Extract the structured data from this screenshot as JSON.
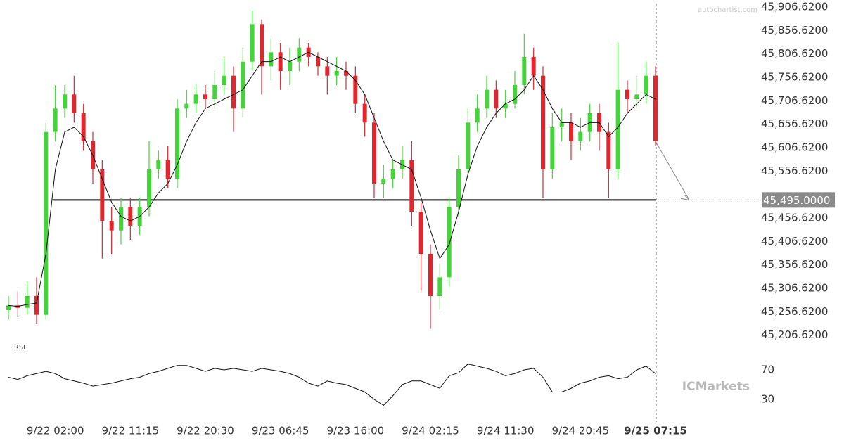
{
  "watermarks": {
    "source": "autochartist.com",
    "logo": "ICMarkets"
  },
  "chart_data": [
    {
      "type": "candlestick",
      "categories": [
        null,
        null,
        null,
        null,
        null,
        "9/22 02:00",
        null,
        null,
        null,
        null,
        null,
        null,
        null,
        "9/22 11:15",
        null,
        null,
        null,
        null,
        null,
        null,
        null,
        "9/22 20:30",
        null,
        null,
        null,
        null,
        null,
        null,
        null,
        "9/23 06:45",
        null,
        null,
        null,
        null,
        null,
        null,
        null,
        "9/23 16:00",
        null,
        null,
        null,
        null,
        null,
        null,
        null,
        "9/24 02:15",
        null,
        null,
        null,
        null,
        null,
        null,
        null,
        "9/24 11:30",
        null,
        null,
        null,
        null,
        null,
        null,
        null,
        "9/24 20:45",
        null,
        null,
        null,
        null,
        null,
        null,
        null,
        "9/25 07:15"
      ],
      "open": [
        45260,
        45270,
        45265,
        45290,
        45250,
        45640,
        45690,
        45720,
        45680,
        45620,
        45560,
        45450,
        45430,
        45480,
        45440,
        45480,
        45560,
        45580,
        45540,
        45690,
        45700,
        45720,
        45710,
        45740,
        45760,
        45690,
        45790,
        45870,
        45780,
        45810,
        45770,
        45790,
        45820,
        45800,
        45780,
        45760,
        45770,
        45760,
        45700,
        45660,
        45530,
        45540,
        45560,
        45580,
        45470,
        45380,
        45290,
        45330,
        45480,
        45560,
        45660,
        45690,
        45730,
        45690,
        45700,
        45740,
        45800,
        45760,
        45560,
        45650,
        45660,
        45620,
        45640,
        45680,
        45640,
        45560,
        45730,
        45710,
        45720,
        45760
      ],
      "high": [
        45290,
        45300,
        45320,
        45330,
        45660,
        45740,
        45740,
        45760,
        45700,
        45640,
        45580,
        45480,
        45500,
        45500,
        45500,
        45620,
        45600,
        45610,
        45710,
        45730,
        45740,
        45740,
        45770,
        45800,
        45780,
        45820,
        45900,
        45880,
        45840,
        45830,
        45820,
        45840,
        45830,
        45810,
        45800,
        45800,
        45790,
        45780,
        45720,
        45680,
        45570,
        45580,
        45610,
        45620,
        45490,
        45400,
        45360,
        45500,
        45590,
        45690,
        45720,
        45760,
        45750,
        45730,
        45770,
        45850,
        45820,
        45780,
        45680,
        45690,
        45680,
        45670,
        45700,
        45700,
        45660,
        45830,
        45750,
        45760,
        45790,
        45780
      ],
      "low": [
        45240,
        45245,
        45250,
        45230,
        45240,
        45620,
        45670,
        45660,
        45600,
        45530,
        45370,
        45380,
        45400,
        45410,
        45420,
        45460,
        45540,
        45520,
        45520,
        45670,
        45680,
        45690,
        45690,
        45720,
        45640,
        45670,
        45770,
        45720,
        45750,
        45730,
        45740,
        45770,
        45780,
        45760,
        45720,
        45740,
        45730,
        45680,
        45630,
        45500,
        45500,
        45520,
        45540,
        45440,
        45300,
        45220,
        45260,
        45310,
        45460,
        45540,
        45640,
        45670,
        45670,
        45670,
        45690,
        45720,
        45730,
        45500,
        45540,
        45620,
        45580,
        45600,
        45620,
        45600,
        45500,
        45540,
        45680,
        45690,
        45700,
        45610
      ],
      "close": [
        45270,
        45265,
        45290,
        45250,
        45640,
        45690,
        45720,
        45680,
        45620,
        45560,
        45450,
        45430,
        45480,
        45440,
        45480,
        45560,
        45580,
        45540,
        45690,
        45700,
        45720,
        45710,
        45740,
        45760,
        45690,
        45790,
        45870,
        45780,
        45810,
        45770,
        45790,
        45820,
        45800,
        45780,
        45760,
        45770,
        45760,
        45700,
        45660,
        45530,
        45540,
        45560,
        45580,
        45470,
        45380,
        45290,
        45330,
        45480,
        45560,
        45660,
        45690,
        45730,
        45690,
        45700,
        45740,
        45800,
        45760,
        45560,
        45650,
        45660,
        45620,
        45640,
        45680,
        45640,
        45560,
        45730,
        45710,
        45720,
        45760,
        45620
      ],
      "colors": {
        "up": "#45d33a",
        "down": "#e0262f"
      },
      "ma": {
        "color": "#111111",
        "values": [
          45270,
          45268,
          45272,
          45275,
          45380,
          45560,
          45640,
          45650,
          45630,
          45590,
          45540,
          45490,
          45460,
          45450,
          45460,
          45480,
          45510,
          45530,
          45570,
          45620,
          45660,
          45690,
          45700,
          45710,
          45720,
          45730,
          45760,
          45790,
          45790,
          45800,
          45790,
          45800,
          45810,
          45800,
          45790,
          45780,
          45770,
          45750,
          45720,
          45670,
          45620,
          45580,
          45570,
          45560,
          45500,
          45430,
          45370,
          45400,
          45470,
          45550,
          45610,
          45650,
          45680,
          45700,
          45710,
          45730,
          45760,
          45730,
          45690,
          45660,
          45660,
          45650,
          45660,
          45660,
          45630,
          45650,
          45680,
          45700,
          45720,
          45710
        ]
      },
      "levels": [
        {
          "value": 45495,
          "label": "45,495.0000"
        }
      ],
      "ylim": [
        45200,
        45920
      ],
      "yticks": [
        {
          "value": 45206.62,
          "label": "45,206.6200"
        },
        {
          "value": 45256.62,
          "label": "45,256.6200"
        },
        {
          "value": 45306.62,
          "label": "45,306.6200"
        },
        {
          "value": 45356.62,
          "label": "45,356.6200"
        },
        {
          "value": 45406.62,
          "label": "45,406.6200"
        },
        {
          "value": 45456.62,
          "label": "45,456.6200"
        },
        {
          "value": 45556.62,
          "label": "45,556.6200"
        },
        {
          "value": 45606.62,
          "label": "45,606.6200"
        },
        {
          "value": 45656.62,
          "label": "45,656.6200"
        },
        {
          "value": 45706.62,
          "label": "45,706.6200"
        },
        {
          "value": 45756.62,
          "label": "45,756.6200"
        },
        {
          "value": 45806.62,
          "label": "45,806.6200"
        },
        {
          "value": 45856.62,
          "label": "45,856.6200"
        },
        {
          "value": 45906.62,
          "label": "45,906.6200"
        }
      ]
    },
    {
      "type": "line",
      "title": "RSI",
      "color": "#111111",
      "values": [
        60,
        57,
        62,
        65,
        68,
        65,
        58,
        55,
        52,
        48,
        50,
        52,
        55,
        58,
        60,
        65,
        68,
        72,
        76,
        76,
        72,
        68,
        72,
        70,
        72,
        70,
        68,
        72,
        70,
        68,
        65,
        60,
        52,
        48,
        55,
        52,
        50,
        45,
        40,
        30,
        22,
        35,
        50,
        55,
        55,
        50,
        45,
        62,
        66,
        78,
        75,
        72,
        68,
        62,
        65,
        70,
        72,
        60,
        40,
        40,
        45,
        52,
        55,
        60,
        62,
        58,
        60,
        70,
        75,
        65
      ],
      "ylim": [
        10,
        90
      ],
      "yticks": [
        30,
        70
      ]
    }
  ]
}
